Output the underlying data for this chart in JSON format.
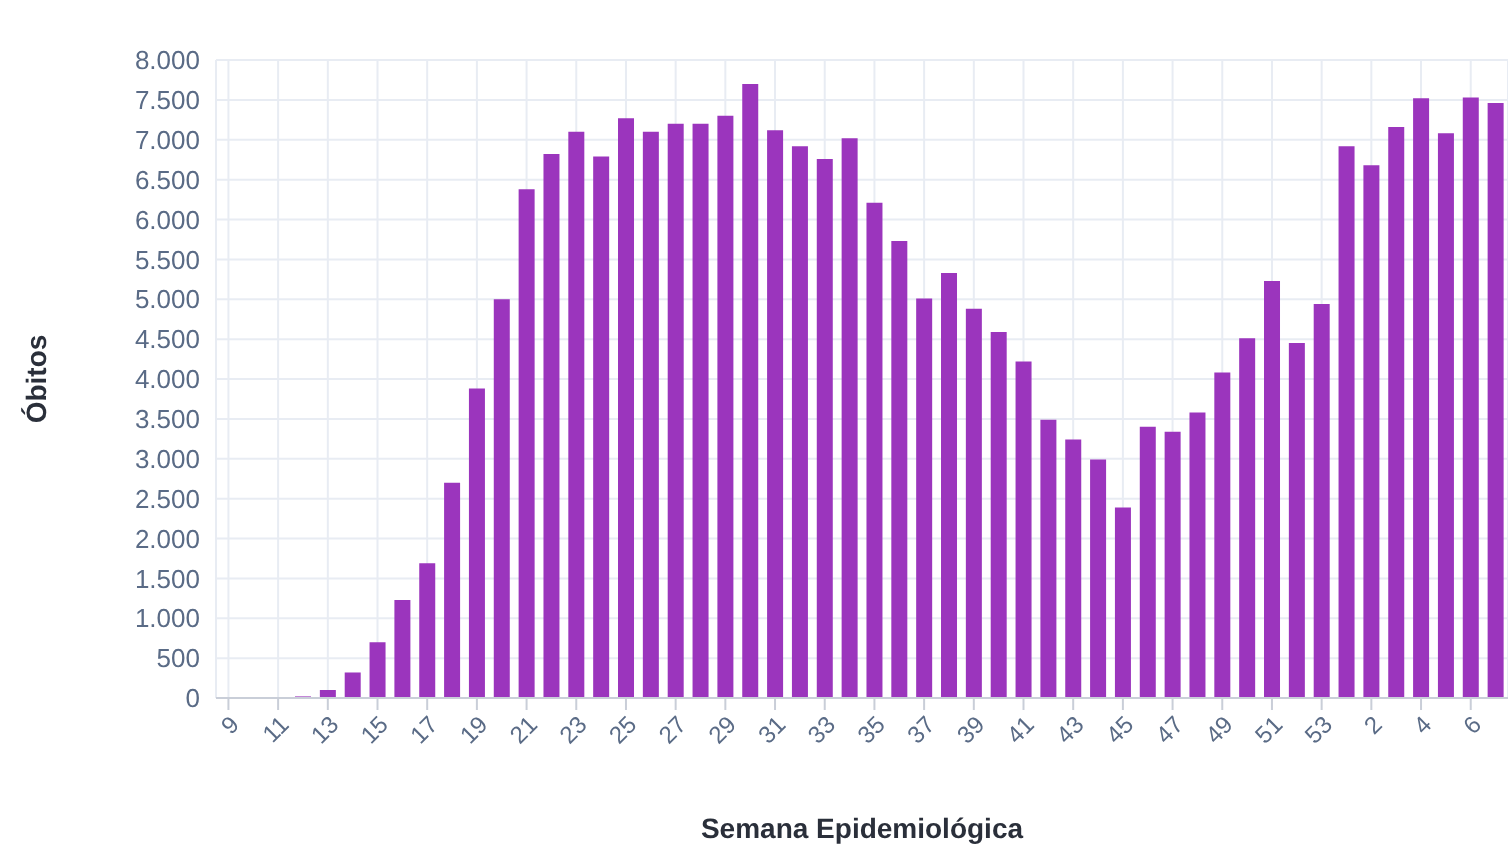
{
  "chart_data": {
    "type": "bar",
    "xlabel": "Semana Epidemiológica",
    "ylabel": "Óbitos",
    "categories": [
      "9",
      null,
      "11",
      null,
      "13",
      null,
      "15",
      null,
      "17",
      null,
      "19",
      null,
      "21",
      null,
      "23",
      null,
      "25",
      null,
      "27",
      null,
      "29",
      null,
      "31",
      null,
      "33",
      null,
      "35",
      null,
      "37",
      null,
      "39",
      null,
      "41",
      null,
      "43",
      null,
      "45",
      null,
      "47",
      null,
      "49",
      null,
      "51",
      null,
      "53",
      null,
      "2",
      null,
      "4",
      null,
      "6",
      null
    ],
    "values": [
      0,
      0,
      5,
      20,
      100,
      320,
      700,
      1230,
      1690,
      2700,
      3880,
      5000,
      6380,
      6820,
      7100,
      6790,
      7270,
      7100,
      7200,
      7200,
      7300,
      7700,
      7120,
      6920,
      6760,
      7020,
      6210,
      5730,
      5010,
      5330,
      4880,
      4590,
      4220,
      3490,
      3240,
      2990,
      2390,
      3400,
      3340,
      3580,
      4080,
      4510,
      5230,
      4450,
      4940,
      6920,
      6680,
      7160,
      7520,
      7080,
      7530,
      7460
    ],
    "color": "#9b35bd",
    "ylim": [
      0,
      8000
    ],
    "yticks": [
      0,
      500,
      {
        "value": 1000,
        "label": "1.000"
      },
      {
        "value": 1500,
        "label": "1.500"
      },
      {
        "value": 2000,
        "label": "2.000"
      },
      {
        "value": 2500,
        "label": "2.500"
      },
      {
        "value": 3000,
        "label": "3.000"
      },
      {
        "value": 3500,
        "label": "3.500"
      },
      {
        "value": 4000,
        "label": "4.000"
      },
      {
        "value": 4500,
        "label": "4.500"
      },
      {
        "value": 5000,
        "label": "5.000"
      },
      {
        "value": 5500,
        "label": "5.500"
      },
      {
        "value": 6000,
        "label": "6.000"
      },
      {
        "value": 6500,
        "label": "6.500"
      },
      {
        "value": 7000,
        "label": "7.000"
      },
      {
        "value": 7500,
        "label": "7.500"
      },
      {
        "value": 8000,
        "label": "8.000"
      }
    ],
    "grid": true,
    "legend": false
  }
}
